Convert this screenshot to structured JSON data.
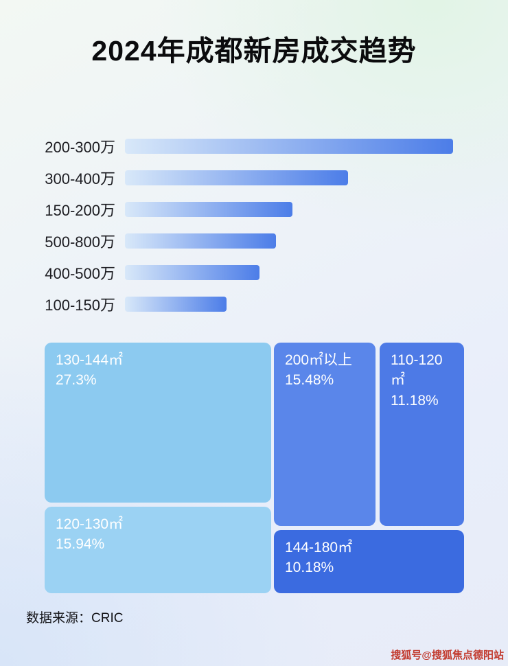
{
  "title": "2024年成都新房成交趋势",
  "source": "数据来源：CRIC",
  "watermark": "搜狐号@搜狐焦点德阳站",
  "colors": {
    "bar_gradient_start": "#d8e8f9",
    "bar_gradient_end": "#4c7de8",
    "title_color": "#0b0b0d",
    "watermark_color": "#c23a2e"
  },
  "chart_data": [
    {
      "type": "bar",
      "title": "2024年成都新房成交趋势",
      "orientation": "horizontal",
      "categories": [
        "200-300万",
        "300-400万",
        "150-200万",
        "500-800万",
        "400-500万",
        "100-150万"
      ],
      "values_relative_length_pct": [
        100,
        68,
        51,
        46,
        41,
        31
      ],
      "value_labels_shown": false,
      "grid": false,
      "legend": "none"
    },
    {
      "type": "treemap",
      "items": [
        {
          "label": "130-144㎡",
          "value": 27.3,
          "display": "27.3%",
          "color": "#8ccaf0"
        },
        {
          "label": "120-130㎡",
          "value": 15.94,
          "display": "15.94%",
          "color": "#9bd2f3"
        },
        {
          "label": "200㎡以上",
          "value": 15.48,
          "display": "15.48%",
          "color": "#5a86ea"
        },
        {
          "label": "110-120㎡",
          "value": 11.18,
          "display": "11.18%",
          "color": "#4d7ae6"
        },
        {
          "label": "144-180㎡",
          "value": 10.18,
          "display": "10.18%",
          "color": "#3b6be0"
        }
      ]
    }
  ]
}
